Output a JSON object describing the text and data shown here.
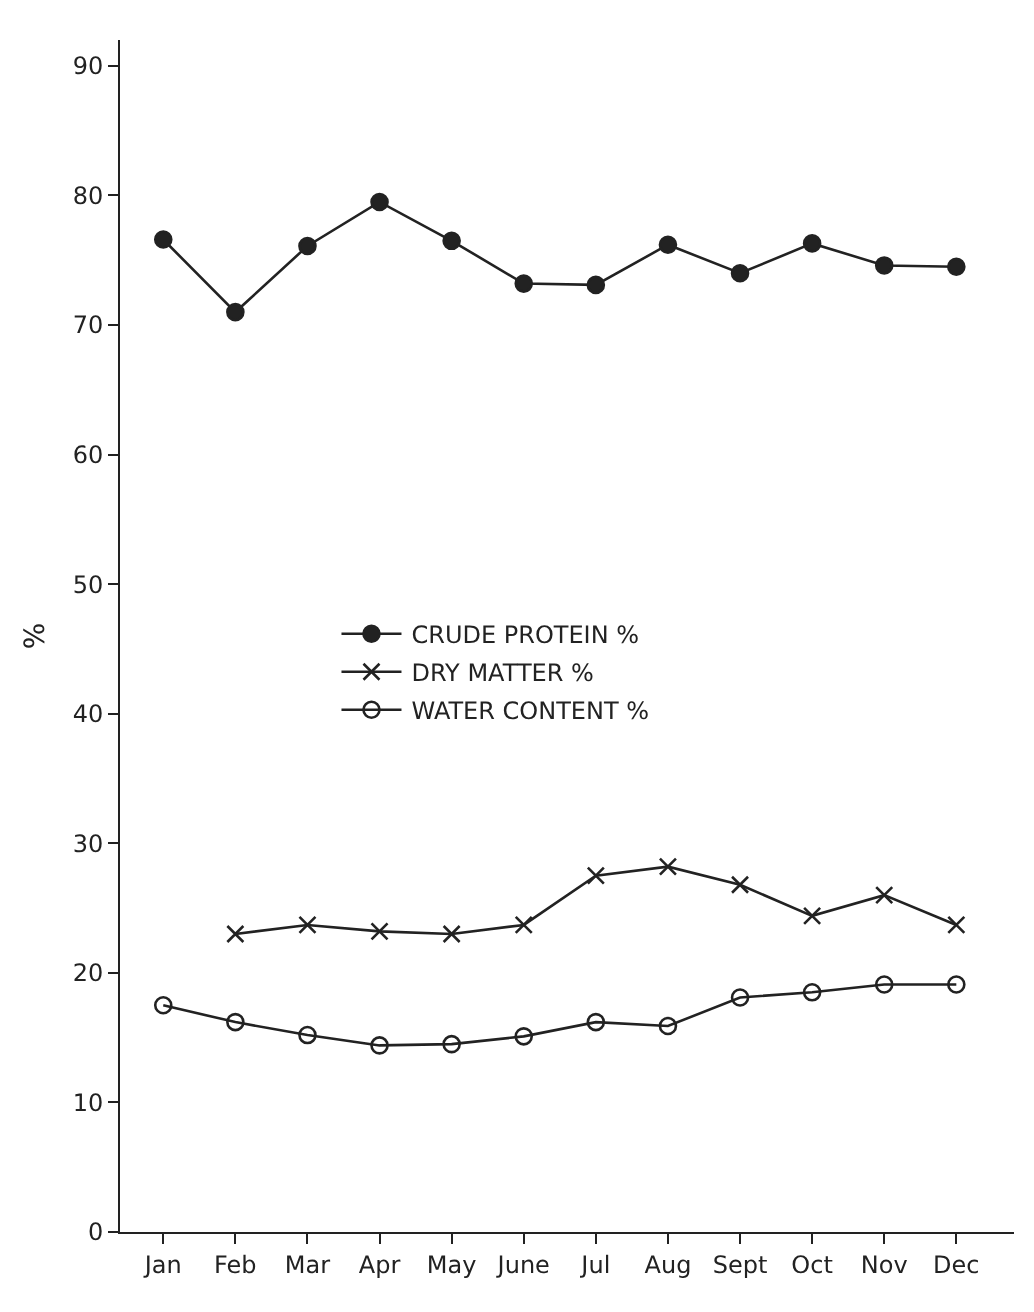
{
  "chart_data": {
    "type": "line",
    "ylabel": "%",
    "categories": [
      "Jan",
      "Feb",
      "Mar",
      "Apr",
      "May",
      "June",
      "Jul",
      "Aug",
      "Sept",
      "Oct",
      "Nov",
      "Dec"
    ],
    "series": [
      {
        "name": "CRUDE PROTEIN %",
        "color": "#222222",
        "marker": "circle",
        "values": [
          76.6,
          71.0,
          76.1,
          79.5,
          76.5,
          73.2,
          73.1,
          76.2,
          74.0,
          76.3,
          74.6,
          74.5
        ]
      },
      {
        "name": "DRY MATTER %",
        "color": "#222222",
        "marker": "cross",
        "values": [
          null,
          23.0,
          23.7,
          23.2,
          23.0,
          23.7,
          27.5,
          28.2,
          26.8,
          24.4,
          26.0,
          23.7
        ]
      },
      {
        "name": "WATER CONTENT %",
        "color": "#222222",
        "marker": "open circle",
        "values": [
          17.5,
          16.2,
          15.2,
          14.4,
          14.5,
          15.1,
          16.2,
          15.9,
          18.1,
          18.5,
          19.1,
          19.1
        ]
      }
    ],
    "ylim": [
      0,
      92
    ],
    "yticks": [
      0,
      10,
      20,
      30,
      40,
      50,
      60,
      70,
      80,
      90
    ],
    "legend": "center",
    "line_style": "solid"
  }
}
